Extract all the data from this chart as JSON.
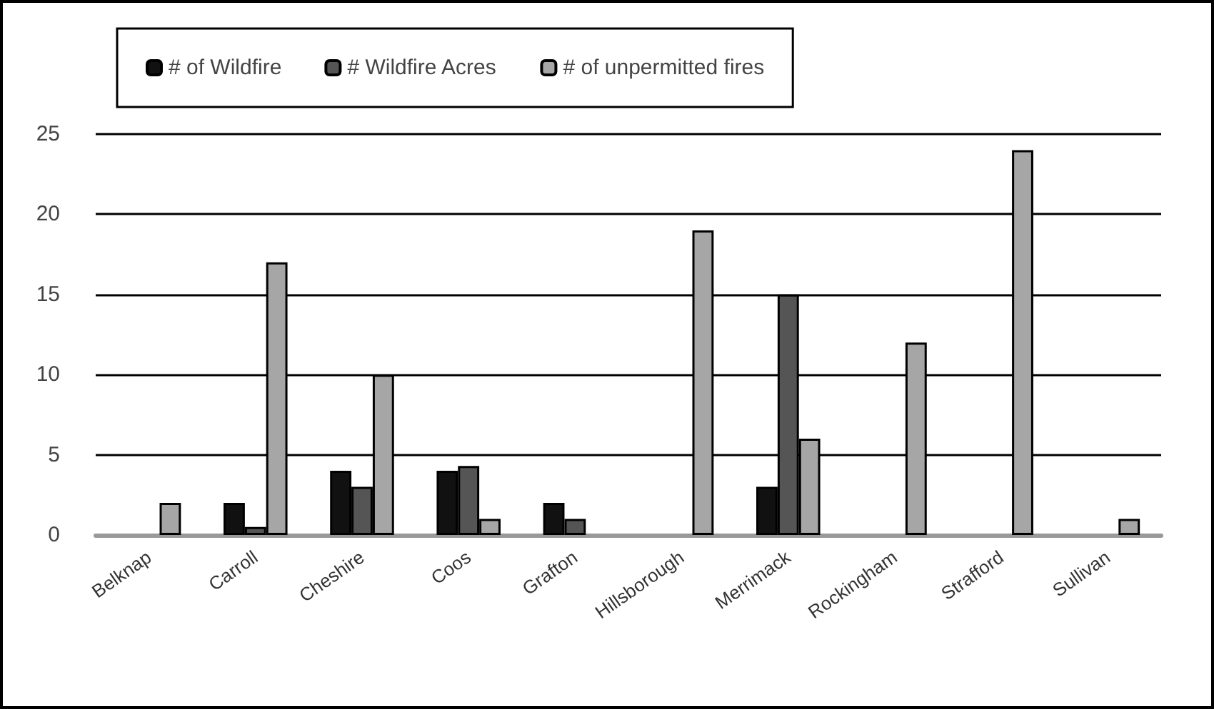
{
  "chart_data": {
    "type": "bar",
    "categories": [
      "Belknap",
      "Carroll",
      "Cheshire",
      "Coos",
      "Grafton",
      "Hillsborough",
      "Merrimack",
      "Rockingham",
      "Strafford",
      "Sullivan"
    ],
    "series": [
      {
        "name": "# of Wildfire",
        "color": "#111111",
        "values": [
          0,
          2,
          4,
          4,
          2,
          0,
          3,
          0,
          0,
          0
        ]
      },
      {
        "name": "# Wildfire Acres",
        "color": "#555555",
        "values": [
          0,
          0.5,
          3,
          4.3,
          1,
          0,
          15,
          0,
          0,
          0
        ]
      },
      {
        "name": "# of unpermitted fires",
        "color": "#a6a6a6",
        "values": [
          2,
          17,
          10,
          1,
          0,
          19,
          6,
          12,
          24,
          1
        ]
      }
    ],
    "ylim": [
      0,
      25
    ],
    "yticks": [
      0,
      5,
      10,
      15,
      20,
      25
    ],
    "grid": "y",
    "legend": "top left"
  }
}
